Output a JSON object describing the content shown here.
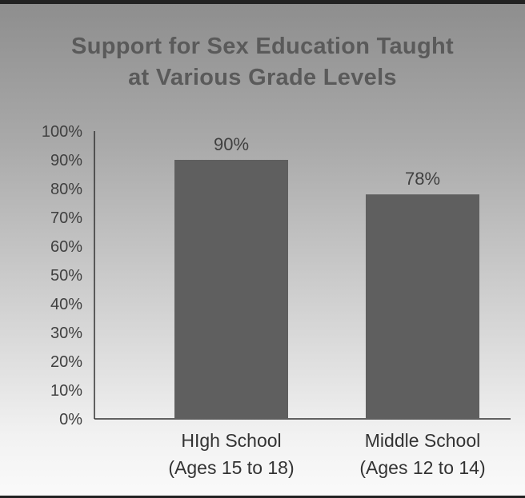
{
  "chart_data": {
    "type": "bar",
    "title": [
      "Support for Sex Education Taught",
      "at Various Grade Levels"
    ],
    "categories": [
      [
        "HIgh School",
        "(Ages 15 to 18)"
      ],
      [
        "Middle School",
        "(Ages 12 to 14)"
      ]
    ],
    "values": [
      90,
      78
    ],
    "data_labels": [
      "90%",
      "78%"
    ],
    "y_ticks": [
      "0%",
      "10%",
      "20%",
      "30%",
      "40%",
      "50%",
      "60%",
      "70%",
      "80%",
      "90%",
      "100%"
    ],
    "ylim": [
      0,
      100
    ],
    "grid": false,
    "legend": "none",
    "colors": {
      "bar": "#5f5f5f",
      "axis": "#333333"
    }
  }
}
